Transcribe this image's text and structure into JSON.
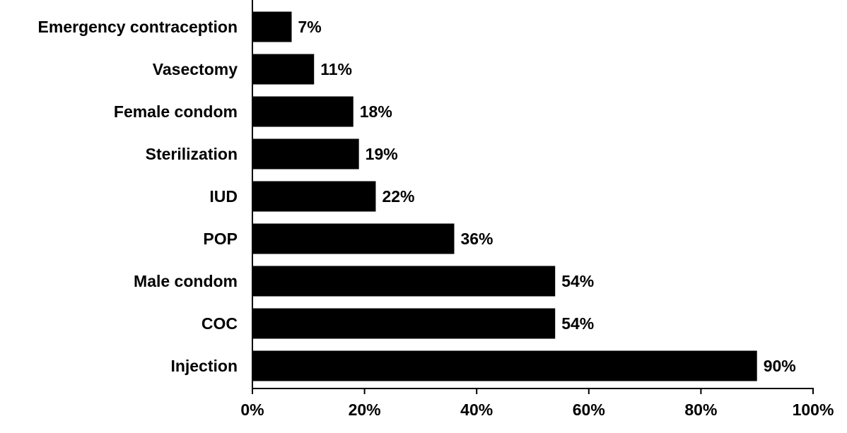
{
  "chart_data": {
    "type": "bar",
    "orientation": "horizontal",
    "categories": [
      "Emergency contraception",
      "Vasectomy",
      "Female condom",
      "Sterilization",
      "IUD",
      "POP",
      "Male condom",
      "COC",
      "Injection"
    ],
    "values": [
      7,
      11,
      18,
      19,
      22,
      36,
      54,
      54,
      90
    ],
    "value_labels": [
      "7%",
      "11%",
      "18%",
      "19%",
      "22%",
      "36%",
      "54%",
      "54%",
      "90%"
    ],
    "xlim": [
      0,
      100
    ],
    "x_ticks": [
      0,
      20,
      40,
      60,
      80,
      100
    ],
    "x_tick_labels": [
      "0%",
      "20%",
      "40%",
      "60%",
      "80%",
      "100%"
    ],
    "title": "",
    "xlabel": "",
    "ylabel": "",
    "grid": false,
    "legend": "none",
    "bar_color": "#000000",
    "axis_color": "#000000"
  }
}
